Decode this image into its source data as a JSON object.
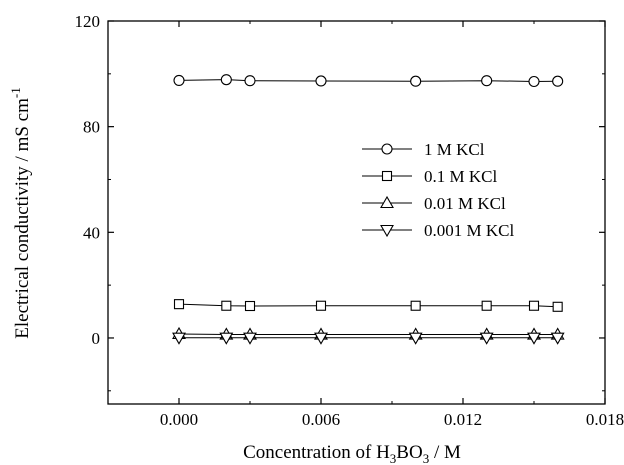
{
  "chart_data": {
    "type": "line",
    "title": "",
    "xlabel": {
      "pre": "Concentration of H",
      "sub1": "3",
      "mid": "BO",
      "sub2": "3",
      "post": " / M"
    },
    "ylabel": {
      "main": "Electrical conductivity / mS cm",
      "sup": "-1"
    },
    "xlim": [
      -0.003,
      0.018
    ],
    "ylim": [
      -25,
      120
    ],
    "xticks": [
      0.0,
      0.006,
      0.012,
      0.018
    ],
    "xtick_labels": [
      "0.000",
      "0.006",
      "0.012",
      "0.018"
    ],
    "yticks": [
      0,
      40,
      80,
      120
    ],
    "ytick_labels": [
      "0",
      "40",
      "80",
      "120"
    ],
    "grid": false,
    "legend_position": "right",
    "x": [
      0.0,
      0.002,
      0.003,
      0.006,
      0.01,
      0.013,
      0.015,
      0.016
    ],
    "series": [
      {
        "name": "1 M  KCl",
        "marker": "circle",
        "values": [
          97.5,
          97.8,
          97.4,
          97.3,
          97.2,
          97.4,
          97.1,
          97.2
        ]
      },
      {
        "name": "0.1 M  KCl",
        "marker": "square",
        "values": [
          12.8,
          12.2,
          12.1,
          12.2,
          12.2,
          12.2,
          12.2,
          11.8
        ]
      },
      {
        "name": "0.01 M  KCl",
        "marker": "triangle-up",
        "values": [
          1.5,
          1.3,
          1.3,
          1.3,
          1.3,
          1.3,
          1.3,
          1.3
        ]
      },
      {
        "name": "0.001 M  KCl",
        "marker": "triangle-down",
        "values": [
          0.1,
          0.1,
          0.1,
          0.1,
          0.1,
          0.1,
          0.1,
          0.1
        ]
      }
    ]
  }
}
